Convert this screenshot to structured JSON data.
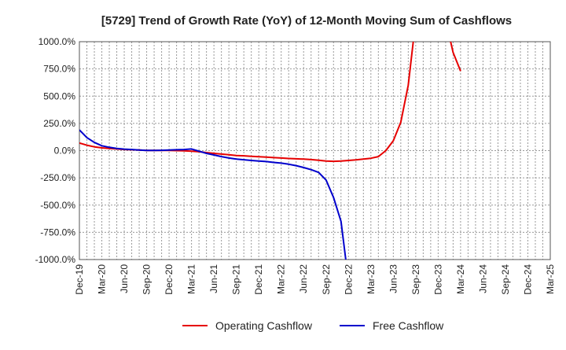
{
  "chart_data": {
    "type": "line",
    "title": "[5729]  Trend of Growth Rate (YoY) of 12-Month Moving Sum of Cashflows",
    "xlabel": "",
    "ylabel": "",
    "ylim": [
      -1000,
      1000
    ],
    "y_ticks": [
      1000,
      750,
      500,
      250,
      0,
      -250,
      -500,
      -750,
      -1000
    ],
    "y_tick_labels": [
      "1000.0%",
      "750.0%",
      "500.0%",
      "250.0%",
      "0.0%",
      "-250.0%",
      "-500.0%",
      "-750.0%",
      "-1000.0%"
    ],
    "x_tick_labels": [
      "Dec-19",
      "Mar-20",
      "Jun-20",
      "Sep-20",
      "Dec-20",
      "Mar-21",
      "Jun-21",
      "Sep-21",
      "Dec-21",
      "Mar-22",
      "Jun-22",
      "Sep-22",
      "Dec-22",
      "Mar-23",
      "Jun-23",
      "Sep-23",
      "Dec-23",
      "Mar-24",
      "Jun-24",
      "Sep-24",
      "Dec-24",
      "Mar-25"
    ],
    "x": [
      "Dec-19",
      "Jan-20",
      "Feb-20",
      "Mar-20",
      "Apr-20",
      "May-20",
      "Jun-20",
      "Jul-20",
      "Aug-20",
      "Sep-20",
      "Oct-20",
      "Nov-20",
      "Dec-20",
      "Jan-21",
      "Feb-21",
      "Mar-21",
      "Apr-21",
      "May-21",
      "Jun-21",
      "Jul-21",
      "Aug-21",
      "Sep-21",
      "Oct-21",
      "Nov-21",
      "Dec-21",
      "Jan-22",
      "Feb-22",
      "Mar-22",
      "Apr-22",
      "May-22",
      "Jun-22",
      "Jul-22",
      "Aug-22",
      "Sep-22",
      "Oct-22",
      "Nov-22",
      "Dec-22",
      "Jan-23",
      "Feb-23",
      "Mar-23",
      "Apr-23",
      "May-23",
      "Jun-23",
      "Jul-23",
      "Aug-23",
      "Sep-23",
      "Oct-23",
      "Nov-23",
      "Dec-23",
      "Jan-24",
      "Feb-24",
      "Mar-24"
    ],
    "grid": true,
    "legend_position": "bottom",
    "series": [
      {
        "name": "Operating Cashflow",
        "color": "#e60000",
        "values": [
          70,
          50,
          35,
          25,
          20,
          15,
          10,
          8,
          5,
          2,
          2,
          2,
          2,
          0,
          -2,
          -5,
          -10,
          -18,
          -25,
          -32,
          -38,
          -45,
          -48,
          -52,
          -56,
          -60,
          -64,
          -68,
          -72,
          -75,
          -78,
          -82,
          -88,
          -95,
          -98,
          -95,
          -90,
          -85,
          -78,
          -70,
          -55,
          0,
          90,
          260,
          600,
          1200,
          null,
          null,
          null,
          1200,
          900,
          730
        ]
      },
      {
        "name": "Free Cashflow",
        "color": "#0000cc",
        "values": [
          190,
          120,
          75,
          45,
          30,
          20,
          14,
          10,
          6,
          2,
          2,
          3,
          5,
          8,
          10,
          15,
          -5,
          -25,
          -40,
          -55,
          -68,
          -78,
          -84,
          -90,
          -95,
          -100,
          -108,
          -115,
          -125,
          -138,
          -155,
          -175,
          -200,
          -270,
          -430,
          -650,
          -1200,
          null,
          null,
          null,
          null,
          null,
          null,
          null,
          null,
          null,
          null,
          null,
          null,
          null,
          null,
          null
        ]
      }
    ]
  }
}
